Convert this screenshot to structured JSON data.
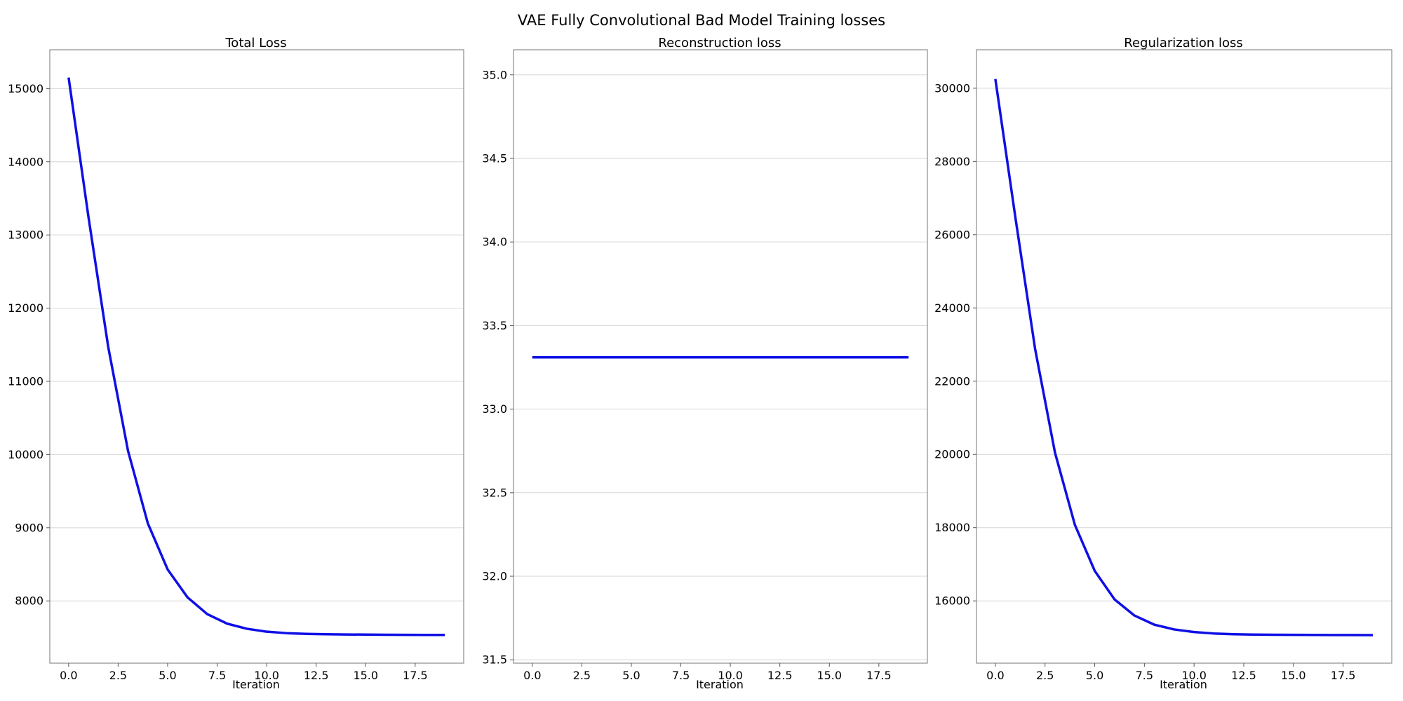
{
  "figure": {
    "title": "VAE Fully Convolutional Bad Model Training losses"
  },
  "chart_data": [
    {
      "type": "line",
      "title": "Total Loss",
      "xlabel": "Iteration",
      "ylabel": "",
      "xlim": [
        -0.95,
        19.95
      ],
      "ylim": [
        7150,
        15530
      ],
      "xticks": [
        0.0,
        2.5,
        5.0,
        7.5,
        10.0,
        12.5,
        15.0,
        17.5
      ],
      "xtick_labels": [
        "0.0",
        "2.5",
        "5.0",
        "7.5",
        "10.0",
        "12.5",
        "15.0",
        "17.5"
      ],
      "yticks": [
        8000,
        9000,
        10000,
        11000,
        12000,
        13000,
        14000,
        15000
      ],
      "ytick_labels": [
        "8000",
        "9000",
        "10000",
        "11000",
        "12000",
        "13000",
        "14000",
        "15000"
      ],
      "grid": "horizontal",
      "color": "#0f0fe6",
      "x": [
        0,
        1,
        2,
        3,
        4,
        5,
        6,
        7,
        8,
        9,
        10,
        11,
        12,
        13,
        14,
        15,
        16,
        17,
        18,
        19
      ],
      "y": [
        15150,
        13250,
        11470,
        10050,
        9060,
        8430,
        8050,
        7820,
        7690,
        7620,
        7580,
        7560,
        7550,
        7545,
        7542,
        7540,
        7538,
        7537,
        7536,
        7536
      ]
    },
    {
      "type": "line",
      "title": "Reconstruction loss",
      "xlabel": "Iteration",
      "ylabel": "",
      "xlim": [
        -0.95,
        19.95
      ],
      "ylim": [
        31.48,
        35.15
      ],
      "xticks": [
        0.0,
        2.5,
        5.0,
        7.5,
        10.0,
        12.5,
        15.0,
        17.5
      ],
      "xtick_labels": [
        "0.0",
        "2.5",
        "5.0",
        "7.5",
        "10.0",
        "12.5",
        "15.0",
        "17.5"
      ],
      "yticks": [
        31.5,
        32.0,
        32.5,
        33.0,
        33.5,
        34.0,
        34.5,
        35.0
      ],
      "ytick_labels": [
        "31.5",
        "32.0",
        "32.5",
        "33.0",
        "33.5",
        "34.0",
        "34.5",
        "35.0"
      ],
      "grid": "horizontal",
      "color": "#0f0fe6",
      "x": [
        0,
        1,
        2,
        3,
        4,
        5,
        6,
        7,
        8,
        9,
        10,
        11,
        12,
        13,
        14,
        15,
        16,
        17,
        18,
        19
      ],
      "y": [
        33.31,
        33.31,
        33.31,
        33.31,
        33.31,
        33.31,
        33.31,
        33.31,
        33.31,
        33.31,
        33.31,
        33.31,
        33.31,
        33.31,
        33.31,
        33.31,
        33.31,
        33.31,
        33.31,
        33.31
      ]
    },
    {
      "type": "line",
      "title": "Regularization loss",
      "xlabel": "Iteration",
      "ylabel": "",
      "xlim": [
        -0.95,
        19.95
      ],
      "ylim": [
        14300,
        31050
      ],
      "xticks": [
        0.0,
        2.5,
        5.0,
        7.5,
        10.0,
        12.5,
        15.0,
        17.5
      ],
      "xtick_labels": [
        "0.0",
        "2.5",
        "5.0",
        "7.5",
        "10.0",
        "12.5",
        "15.0",
        "17.5"
      ],
      "yticks": [
        16000,
        18000,
        20000,
        22000,
        24000,
        26000,
        28000,
        30000
      ],
      "ytick_labels": [
        "16000",
        "18000",
        "20000",
        "22000",
        "24000",
        "26000",
        "28000",
        "30000"
      ],
      "grid": "horizontal",
      "color": "#0f0fe6",
      "x": [
        0,
        1,
        2,
        3,
        4,
        5,
        6,
        7,
        8,
        9,
        10,
        11,
        12,
        13,
        14,
        15,
        16,
        17,
        18,
        19
      ],
      "y": [
        30250,
        26500,
        22880,
        20050,
        18080,
        16820,
        16040,
        15600,
        15350,
        15220,
        15150,
        15110,
        15090,
        15080,
        15075,
        15072,
        15070,
        15068,
        15067,
        15066
      ]
    }
  ]
}
